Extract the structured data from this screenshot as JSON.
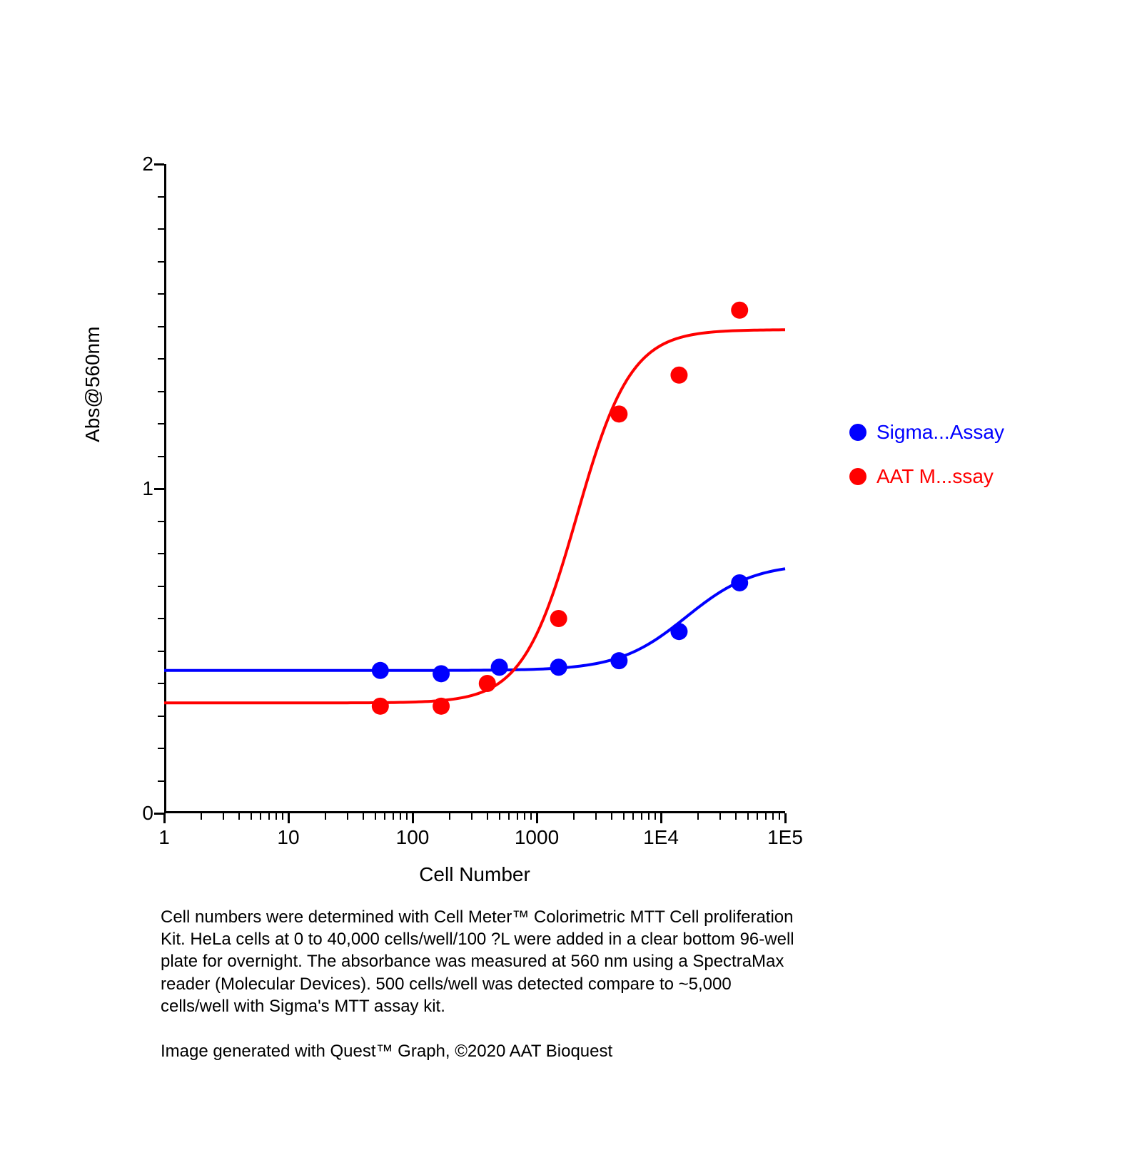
{
  "chart": {
    "type": "scatter-line",
    "xlabel": "Cell Number",
    "ylabel": "Abs@560nm",
    "x_scale": "log",
    "y_scale": "linear",
    "xlim": [
      1,
      100000
    ],
    "ylim": [
      0,
      2
    ],
    "ytick_labels": [
      "0",
      "1",
      "2"
    ],
    "ytick_positions": [
      0,
      1,
      2
    ],
    "ytick_minor_positions": [
      0.1,
      0.2,
      0.3,
      0.4,
      0.5,
      0.6,
      0.7,
      0.8,
      0.9,
      1.1,
      1.2,
      1.3,
      1.4,
      1.5,
      1.6,
      1.7,
      1.8,
      1.9
    ],
    "xtick_labels": [
      "1",
      "10",
      "100",
      "1000",
      "1E4",
      "1E5"
    ],
    "xtick_positions": [
      1,
      10,
      100,
      1000,
      10000,
      100000
    ],
    "xtick_minor_positions": [
      2,
      3,
      4,
      5,
      6,
      7,
      8,
      9,
      20,
      30,
      40,
      50,
      60,
      70,
      80,
      90,
      200,
      300,
      400,
      500,
      600,
      700,
      800,
      900,
      2000,
      3000,
      4000,
      5000,
      6000,
      7000,
      8000,
      9000,
      20000,
      30000,
      40000,
      50000,
      60000,
      70000,
      80000,
      90000
    ],
    "background_color": "#ffffff",
    "axis_color": "#000000",
    "label_fontsize": 28,
    "tick_fontsize": 28,
    "marker_radius": 12,
    "line_width": 4,
    "series": [
      {
        "name": "Sigma",
        "legend_label": "Sigma...Assay",
        "color": "#0000ff",
        "marker_x": [
          55,
          170,
          500,
          1500,
          4600,
          14000,
          43000
        ],
        "marker_y": [
          0.44,
          0.43,
          0.45,
          0.45,
          0.47,
          0.56,
          0.71
        ],
        "curve": {
          "bottom": 0.44,
          "top": 0.77,
          "ec50": 16000,
          "hill": 1.6
        }
      },
      {
        "name": "AAT",
        "legend_label": "AAT M...ssay",
        "color": "#ff0000",
        "marker_x": [
          55,
          170,
          400,
          1500,
          4600,
          14000,
          43000
        ],
        "marker_y": [
          0.33,
          0.33,
          0.4,
          0.6,
          1.23,
          1.35,
          1.55
        ],
        "curve": {
          "bottom": 0.34,
          "top": 1.49,
          "ec50": 2100,
          "hill": 2.0
        }
      }
    ]
  },
  "legend": {
    "items": [
      {
        "label": "Sigma...Assay",
        "color": "#0000ff"
      },
      {
        "label": "AAT M...ssay",
        "color": "#ff0000"
      }
    ]
  },
  "caption": "Cell numbers were determined with Cell Meter™ Colorimetric MTT Cell proliferation Kit. HeLa cells at 0 to 40,000 cells/well/100 ?L were added in a clear bottom 96-well plate for overnight. The absorbance was measured at 560 nm using a SpectraMax reader (Molecular Devices). 500 cells/well was detected compare to ~5,000 cells/well with Sigma's MTT assay kit.",
  "attribution": "Image generated with Quest™ Graph, ©2020 AAT Bioquest"
}
